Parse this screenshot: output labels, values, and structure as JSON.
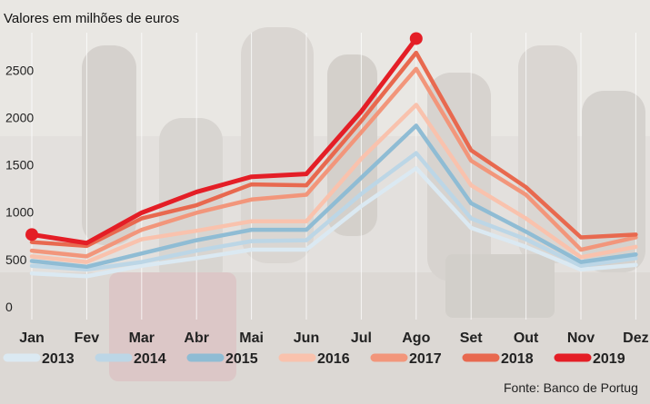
{
  "chart_data": {
    "type": "line",
    "subtitle": "Valores em milhões de euros",
    "source": "Fonte: Banco de Portug",
    "categories": [
      "Jan",
      "Fev",
      "Mar",
      "Abr",
      "Mai",
      "Jun",
      "Jul",
      "Ago",
      "Set",
      "Out",
      "Nov",
      "Dez"
    ],
    "ylim": [
      0,
      3000
    ],
    "yticks": [
      0,
      500,
      1000,
      1500,
      2000,
      2500
    ],
    "ytick_labels": [
      "0",
      "500",
      "1000",
      "1500",
      "2000",
      "2500"
    ],
    "grid": "vertical",
    "legend_position": "bottom",
    "series": [
      {
        "name": "2013",
        "color": "#dbe9f2",
        "values": [
          440,
          410,
          520,
          600,
          690,
          690,
          1150,
          1550,
          920,
          720,
          480,
          530
        ]
      },
      {
        "name": "2014",
        "color": "#bcd6e6",
        "values": [
          520,
          480,
          560,
          680,
          780,
          790,
          1280,
          1710,
          1020,
          800,
          520,
          600
        ]
      },
      {
        "name": "2015",
        "color": "#8fbcd4",
        "values": [
          570,
          510,
          650,
          790,
          900,
          900,
          1450,
          2000,
          1180,
          880,
          560,
          640
        ]
      },
      {
        "name": "2016",
        "color": "#f9c2ad",
        "values": [
          620,
          560,
          800,
          890,
          990,
          990,
          1650,
          2220,
          1370,
          1020,
          610,
          720
        ]
      },
      {
        "name": "2017",
        "color": "#f2967b",
        "values": [
          680,
          620,
          900,
          1080,
          1220,
          1270,
          1930,
          2600,
          1630,
          1270,
          690,
          820
        ]
      },
      {
        "name": "2018",
        "color": "#e8694f",
        "values": [
          770,
          730,
          1020,
          1160,
          1380,
          1370,
          2050,
          2770,
          1740,
          1350,
          820,
          850
        ]
      },
      {
        "name": "2019",
        "color": "#e41e26",
        "values": [
          850,
          760,
          1080,
          1300,
          1460,
          1490,
          2150,
          2920,
          null,
          null,
          null,
          null
        ]
      }
    ]
  }
}
